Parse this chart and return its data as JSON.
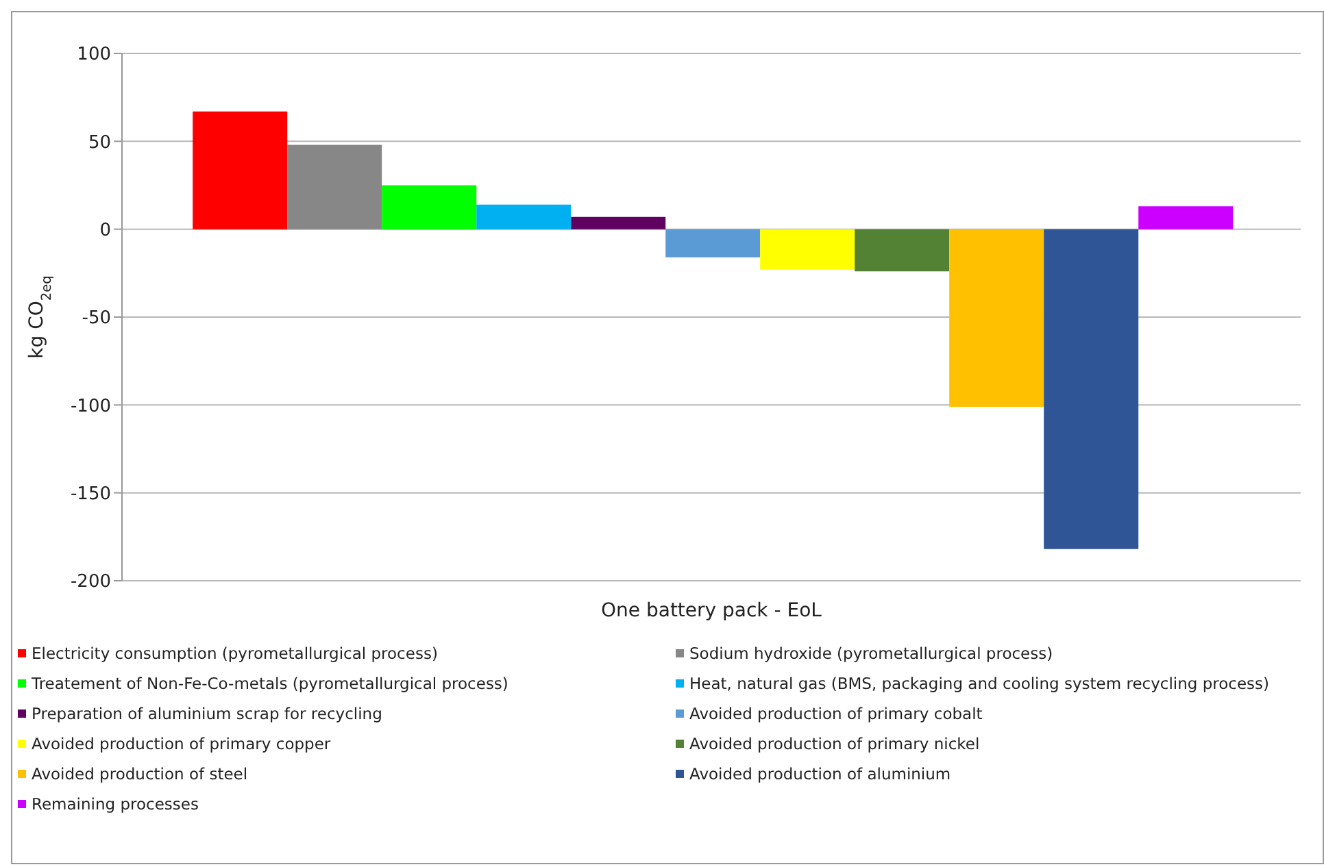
{
  "chart_data": {
    "type": "bar",
    "categories": [
      "One battery pack - EoL"
    ],
    "ylabel": "kg CO$_{2eq}$",
    "ylim": [
      -200,
      100
    ],
    "yticks": [
      -200,
      -150,
      -100,
      -50,
      0,
      50,
      100
    ],
    "grid": "y",
    "legend": "bottom",
    "series": [
      {
        "name": "Electricity consumption (pyrometallurgical process)",
        "color": "#ff0000",
        "values": [
          67
        ]
      },
      {
        "name": "Sodium hydroxide (pyrometallurgical process)",
        "color": "#878787",
        "values": [
          48
        ]
      },
      {
        "name": "Treatement of Non-Fe-Co-metals (pyrometallurgical process)",
        "color": "#00ff00",
        "values": [
          25
        ]
      },
      {
        "name": "Heat, natural gas (BMS, packaging and cooling system recycling process)",
        "color": "#00b0f0",
        "values": [
          14
        ]
      },
      {
        "name": "Preparation of aluminium scrap for recycling",
        "color": "#600060",
        "values": [
          7
        ]
      },
      {
        "name": "Avoided production of primary cobalt",
        "color": "#5b9bd5",
        "values": [
          -16
        ]
      },
      {
        "name": "Avoided production of primary copper",
        "color": "#ffff00",
        "values": [
          -23
        ]
      },
      {
        "name": "Avoided production of primary nickel",
        "color": "#548235",
        "values": [
          -24
        ]
      },
      {
        "name": "Avoided production of steel",
        "color": "#ffc000",
        "values": [
          -101
        ]
      },
      {
        "name": "Avoided production of aluminium",
        "color": "#2f5597",
        "values": [
          -182
        ]
      },
      {
        "name": "Remaining processes",
        "color": "#cc00ff",
        "values": [
          13
        ]
      }
    ]
  }
}
